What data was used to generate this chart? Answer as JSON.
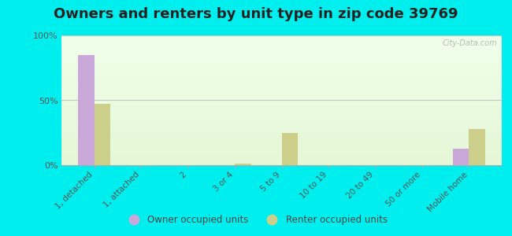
{
  "title": "Owners and renters by unit type in zip code 39769",
  "categories": [
    "1, detached",
    "1, attached",
    "2",
    "3 or 4",
    "5 to 9",
    "10 to 19",
    "20 to 49",
    "50 or more",
    "Mobile home"
  ],
  "owner_values": [
    85,
    0,
    0,
    0,
    0,
    0,
    0,
    0,
    13
  ],
  "renter_values": [
    47,
    0,
    0,
    1,
    25,
    0,
    0,
    0,
    28
  ],
  "owner_color": "#c9a8d9",
  "renter_color": "#cccf8a",
  "ylim": [
    0,
    100
  ],
  "yticks": [
    0,
    50,
    100
  ],
  "ytick_labels": [
    "0%",
    "50%",
    "100%"
  ],
  "background_color": "#00eeee",
  "bar_width": 0.35,
  "title_fontsize": 13,
  "watermark": "City-Data.com",
  "legend_owner": "Owner occupied units",
  "legend_renter": "Renter occupied units"
}
